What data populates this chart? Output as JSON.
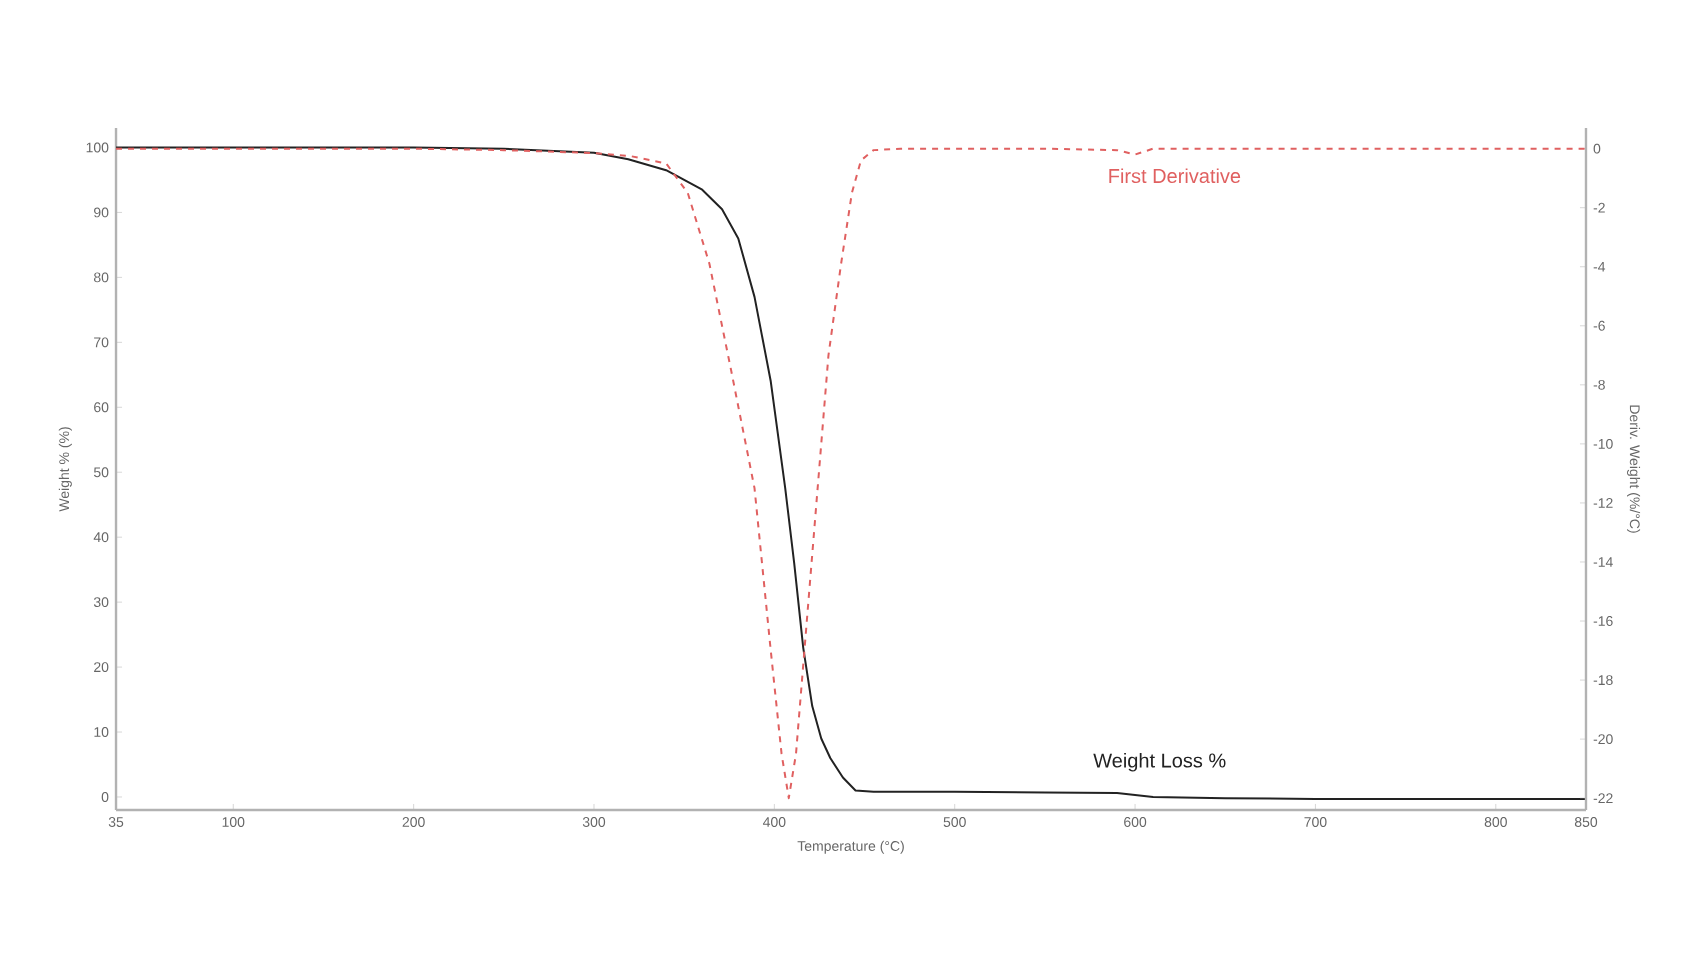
{
  "chart_data": {
    "type": "line",
    "xlabel": "Temperature (°C)",
    "ylabel": "Weight % (%)",
    "y2label": "Deriv. Weight (%/°C)",
    "x": [
      35,
      100,
      200,
      250,
      300,
      319,
      340,
      360,
      371,
      380,
      389,
      398,
      406,
      411,
      416,
      421,
      426,
      431,
      438,
      445,
      455,
      500,
      550,
      590,
      600,
      610,
      650,
      700,
      800,
      850
    ],
    "series": [
      {
        "name": "Weight Loss %",
        "color": "#222222",
        "line_style": "solid",
        "values": [
          100,
          100,
          100,
          99.8,
          99.2,
          98.2,
          96.5,
          93.5,
          90.5,
          86,
          77,
          64,
          47.6,
          36,
          23,
          14,
          9,
          6,
          3,
          1,
          0.8,
          0.8,
          0.7,
          0.6,
          0.3,
          0,
          -0.2,
          -0.3,
          -0.3,
          -0.3
        ]
      },
      {
        "name": "First Derivative",
        "color": "#e06060",
        "line_style": "dashed",
        "axis": "y2",
        "x": [
          35,
          100,
          200,
          250,
          300,
          320,
          340,
          352,
          364,
          376,
          389,
          398,
          404,
          408,
          412,
          418,
          424,
          430,
          437,
          443,
          448,
          455,
          470,
          550,
          590,
          600,
          610,
          700,
          850
        ],
        "values": [
          0,
          0,
          0,
          -0.05,
          -0.15,
          -0.25,
          -0.5,
          -1.5,
          -3.9,
          -7.5,
          -11.5,
          -17,
          -20.5,
          -22,
          -20.5,
          -16,
          -11.5,
          -7,
          -3.9,
          -1.5,
          -0.4,
          -0.05,
          0,
          0,
          -0.05,
          -0.2,
          0,
          0,
          0
        ]
      }
    ],
    "xlim": [
      35,
      850
    ],
    "xticks": [
      35,
      100,
      200,
      300,
      400,
      500,
      600,
      700,
      800,
      850
    ],
    "ylim": [
      -2,
      103
    ],
    "yticks": [
      0,
      10,
      20,
      30,
      40,
      50,
      60,
      70,
      80,
      90,
      100
    ],
    "y2lim": [
      -22.4,
      0.7
    ],
    "y2ticks": [
      0,
      -2,
      -4,
      -6,
      -8,
      -10,
      -12,
      -14,
      -16,
      -18,
      -20,
      -22
    ],
    "grid": false,
    "legend": false,
    "marker": "none"
  }
}
